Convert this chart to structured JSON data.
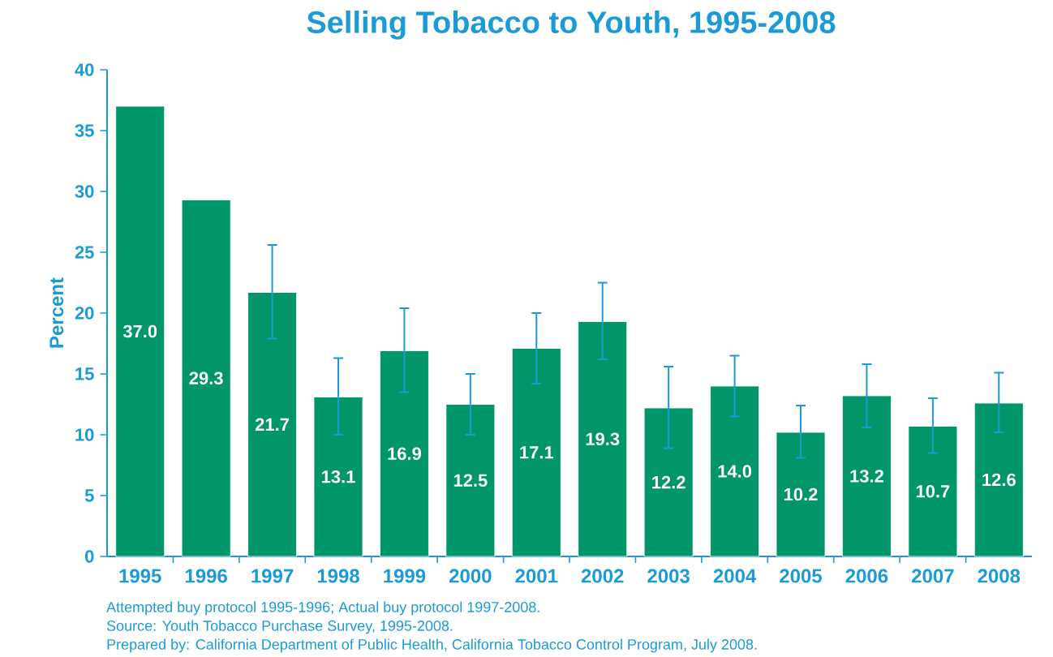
{
  "chart_data": {
    "type": "bar",
    "title": "Selling Tobacco to Youth, 1995-2008",
    "ylabel": "Percent",
    "categories": [
      "1995",
      "1996",
      "1997",
      "1998",
      "1999",
      "2000",
      "2001",
      "2002",
      "2003",
      "2004",
      "2005",
      "2006",
      "2007",
      "2008"
    ],
    "values": [
      37.0,
      29.3,
      21.7,
      13.1,
      16.9,
      12.5,
      17.1,
      19.3,
      12.2,
      14.0,
      10.2,
      13.2,
      10.7,
      12.6
    ],
    "errors": [
      null,
      null,
      [
        17.9,
        25.6
      ],
      [
        10.0,
        16.3
      ],
      [
        13.5,
        20.4
      ],
      [
        10.0,
        15.0
      ],
      [
        14.2,
        20.0
      ],
      [
        16.2,
        22.5
      ],
      [
        8.9,
        15.6
      ],
      [
        11.5,
        16.5
      ],
      [
        8.1,
        12.4
      ],
      [
        10.6,
        15.8
      ],
      [
        8.5,
        13.0
      ],
      [
        10.2,
        15.1
      ]
    ],
    "value_labels": [
      "37.0",
      "29.3",
      "21.7",
      "13.1",
      "16.9",
      "12.5",
      "17.1",
      "19.3",
      "12.2",
      "14.0",
      "10.2",
      "13.2",
      "10.7",
      "12.6"
    ],
    "color": "#00966a",
    "grid": false,
    "ylim": [
      0,
      40
    ],
    "yticks": [
      0,
      5,
      10,
      15,
      20,
      25,
      30,
      35,
      40
    ],
    "annotations": [
      "Attempted buy protocol 1995-1996; Actual buy protocol 1997-2008.",
      "Source: Youth Tobacco Purchase Survey, 1995-2008.",
      "Prepared by: California Department of Public Health, California Tobacco Control Program, July 2008."
    ]
  }
}
